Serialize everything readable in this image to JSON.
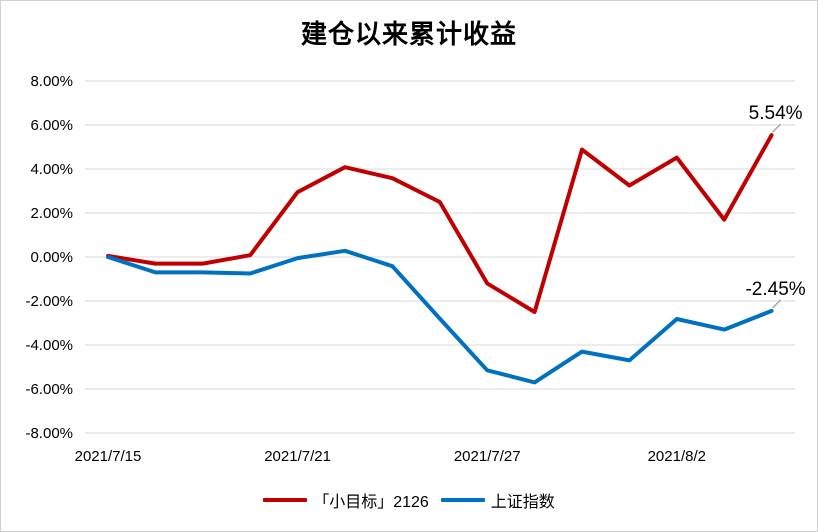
{
  "chart_data": {
    "type": "line",
    "title": "建仓以来累计收益",
    "xlabel": "",
    "ylabel": "",
    "ylim": [
      -8,
      8
    ],
    "y_ticks": [
      "8.00%",
      "6.00%",
      "4.00%",
      "2.00%",
      "0.00%",
      "-2.00%",
      "-4.00%",
      "-6.00%",
      "-8.00%"
    ],
    "y_tick_values": [
      8,
      6,
      4,
      2,
      0,
      -2,
      -4,
      -6,
      -8
    ],
    "x_tick_labels": [
      {
        "label": "2021/7/15",
        "index": 0
      },
      {
        "label": "2021/7/21",
        "index": 4
      },
      {
        "label": "2021/7/27",
        "index": 8
      },
      {
        "label": "2021/8/2",
        "index": 12
      }
    ],
    "x": [
      "2021/7/15",
      "2021/7/16",
      "2021/7/19",
      "2021/7/20",
      "2021/7/21",
      "2021/7/22",
      "2021/7/23",
      "2021/7/26",
      "2021/7/27",
      "2021/7/28",
      "2021/7/29",
      "2021/7/30",
      "2021/8/2",
      "2021/8/3",
      "2021/8/4"
    ],
    "series": [
      {
        "name": "「小目标」2126",
        "color": "#c00000",
        "values": [
          0.05,
          -0.3,
          -0.3,
          0.08,
          2.95,
          4.08,
          3.58,
          2.5,
          -1.2,
          -2.5,
          4.88,
          3.25,
          4.52,
          1.7,
          5.54
        ],
        "end_label": "5.54%"
      },
      {
        "name": "上证指数",
        "color": "#0070c0",
        "values": [
          0.0,
          -0.7,
          -0.7,
          -0.75,
          -0.05,
          0.28,
          -0.42,
          -2.8,
          -5.15,
          -5.7,
          -4.3,
          -4.7,
          -2.82,
          -3.3,
          -2.45
        ],
        "end_label": "-2.45%"
      }
    ],
    "grid": true,
    "legend_position": "bottom"
  }
}
